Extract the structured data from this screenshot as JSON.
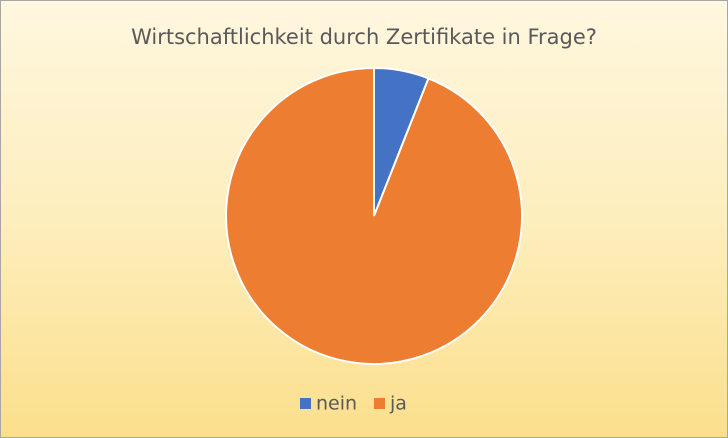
{
  "chart_data": {
    "type": "pie",
    "title": "Wirtschaftlichkeit durch Zertifikate in Frage?",
    "categories": [
      "nein",
      "ja"
    ],
    "values": [
      6,
      94
    ],
    "colors": [
      "#4472c4",
      "#ed7d31"
    ],
    "legend": "bottom"
  }
}
